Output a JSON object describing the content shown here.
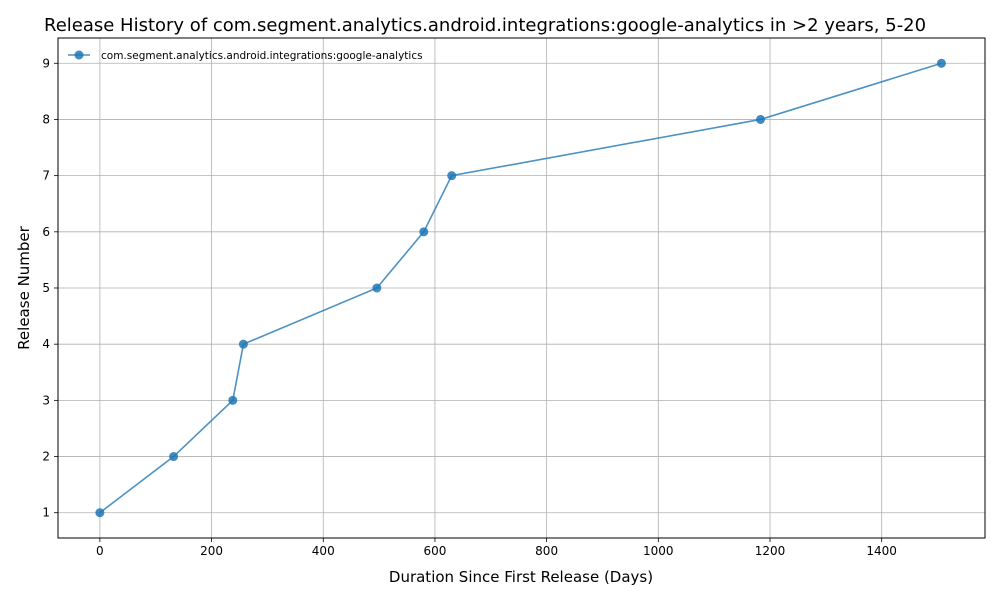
{
  "chart_data": {
    "type": "line",
    "title": "Release History of com.segment.analytics.android.integrations:google-analytics in >2 years, 5-20",
    "xlabel": "Duration Since First Release (Days)",
    "ylabel": "Release Number",
    "xlim": [
      -75,
      1585
    ],
    "ylim": [
      0.55,
      9.45
    ],
    "xticks": [
      0,
      200,
      400,
      600,
      800,
      1000,
      1200,
      1400
    ],
    "yticks": [
      1,
      2,
      3,
      4,
      5,
      6,
      7,
      8,
      9
    ],
    "grid": true,
    "legend_position": "top-left",
    "series": [
      {
        "name": "com.segment.analytics.android.integrations:google-analytics",
        "color": "#1f77b4",
        "marker": "circle",
        "x": [
          0,
          132,
          238,
          257,
          496,
          580,
          630,
          1183,
          1507
        ],
        "y": [
          1,
          2,
          3,
          4,
          5,
          6,
          7,
          8,
          9
        ]
      }
    ]
  }
}
